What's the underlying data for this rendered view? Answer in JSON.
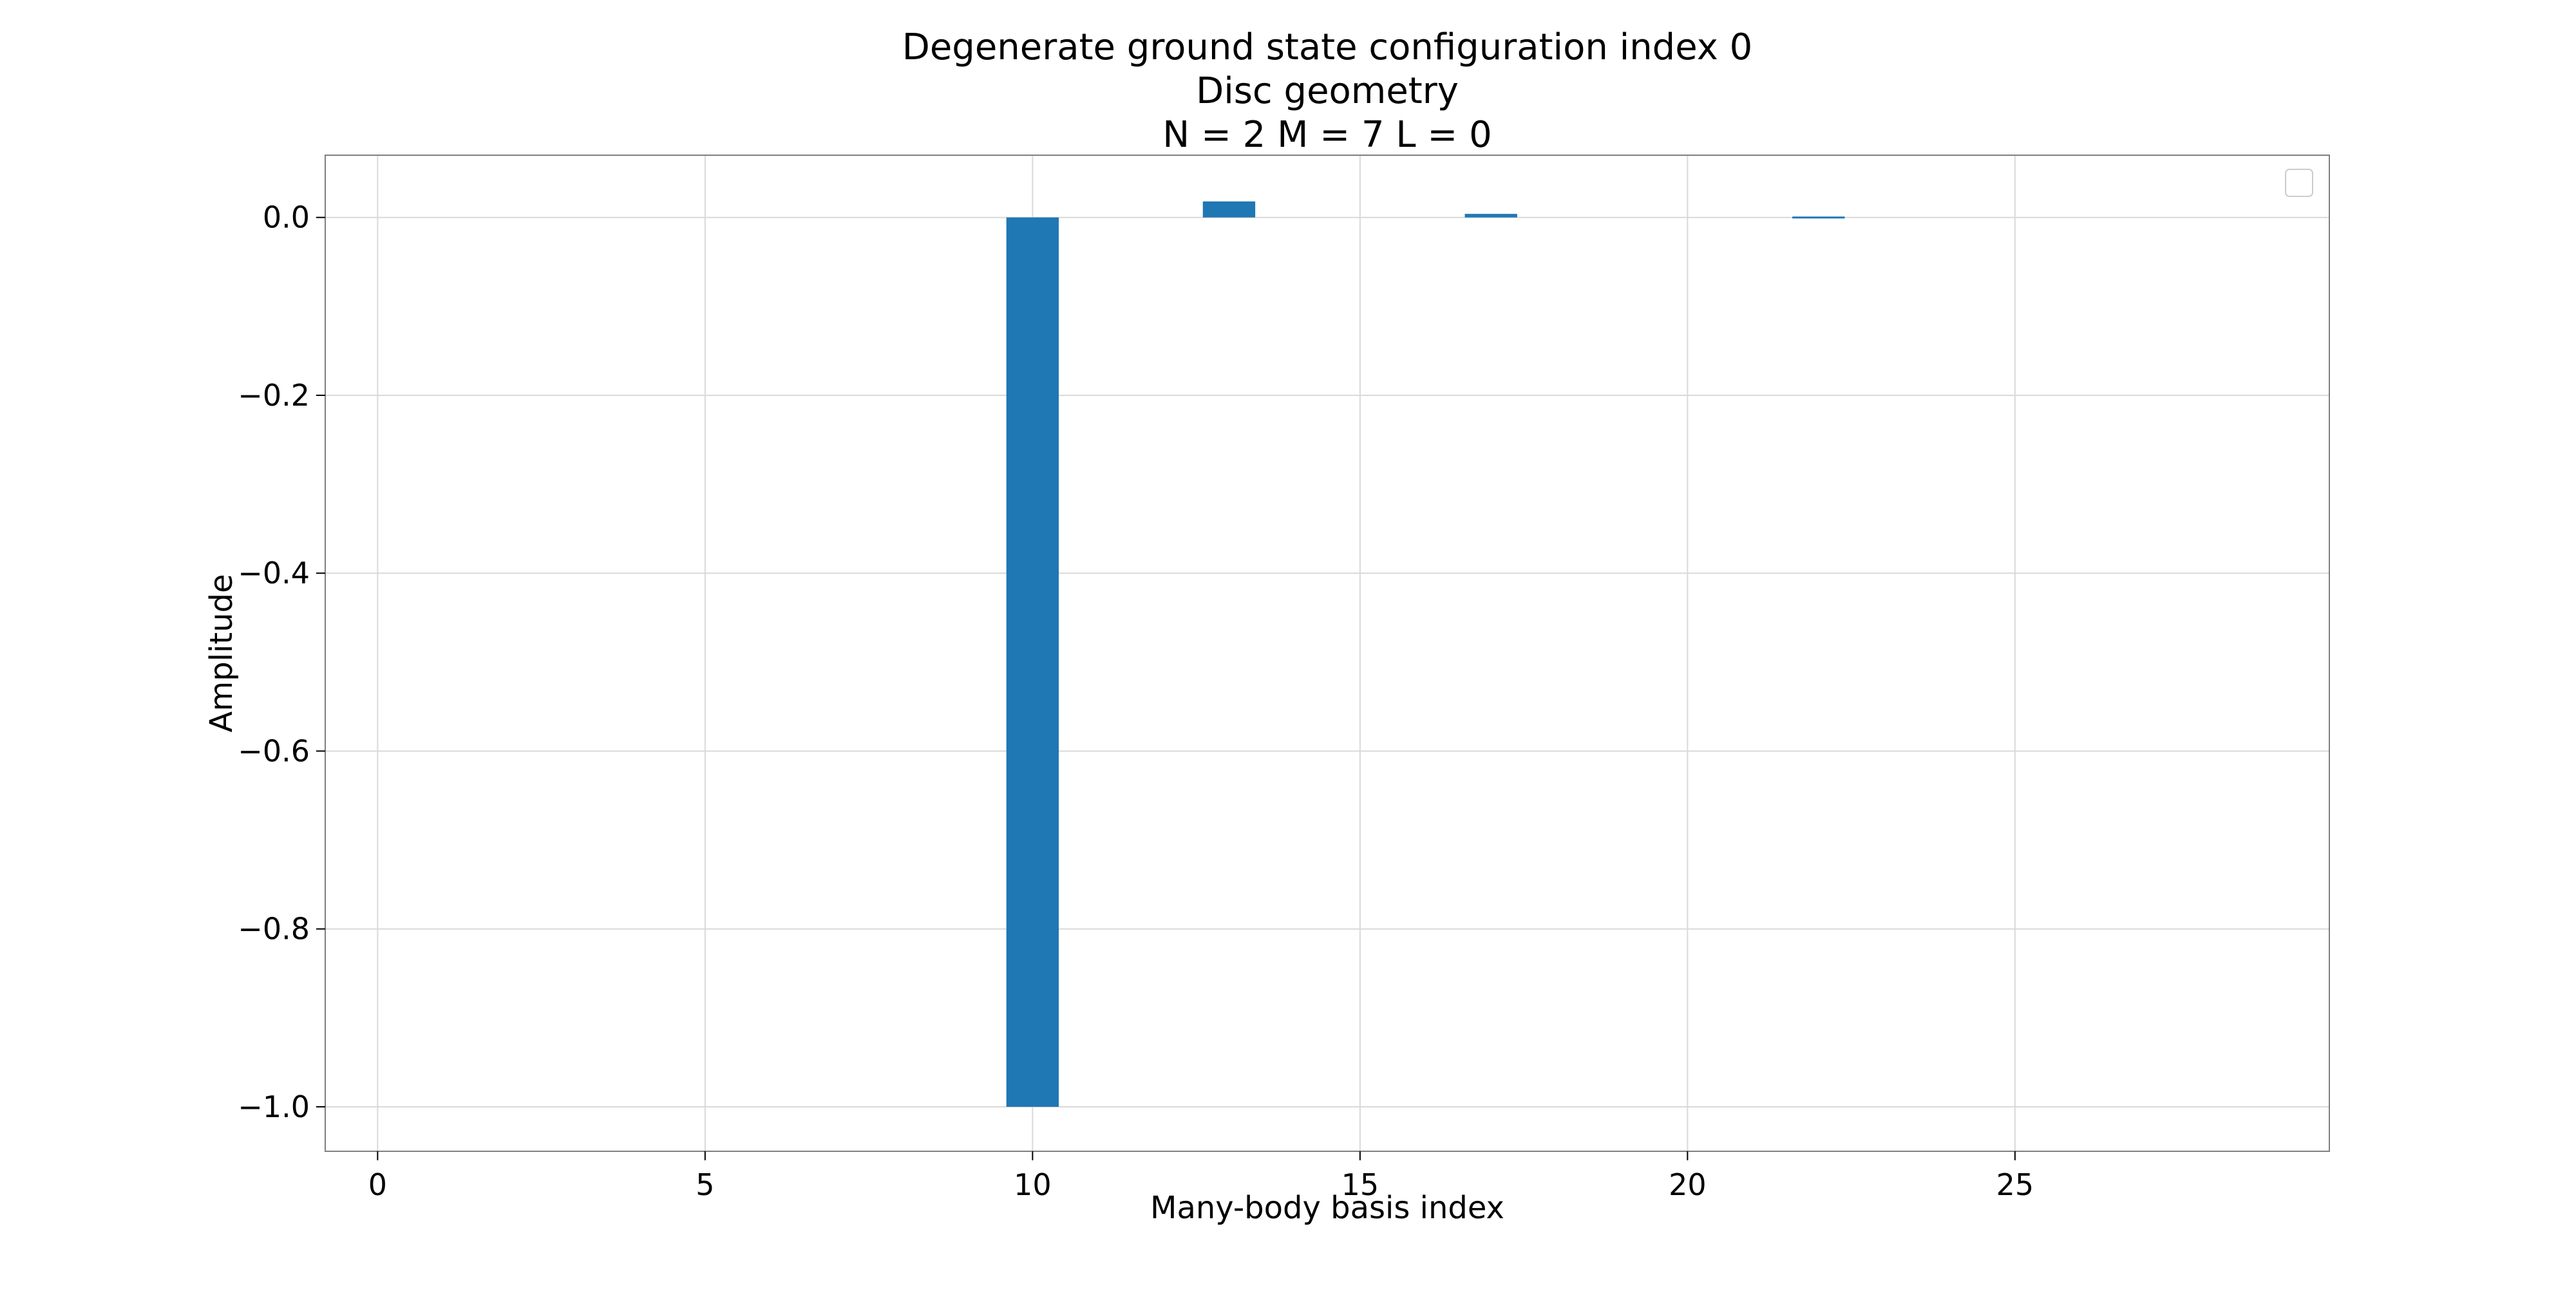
{
  "chart_data": {
    "type": "bar",
    "title_lines": [
      "Degenerate ground state configuration index 0",
      "Disc geometry",
      "N = 2   M = 7   L = 0"
    ],
    "xlabel": "Many-body basis index",
    "ylabel": "Amplitude",
    "xlim": [
      -0.8,
      29.8
    ],
    "ylim": [
      -1.05,
      0.07
    ],
    "x_ticks": [
      0,
      5,
      10,
      15,
      20,
      25
    ],
    "x_tick_labels": [
      "0",
      "5",
      "10",
      "15",
      "20",
      "25"
    ],
    "y_ticks": [
      0.0,
      -0.2,
      -0.4,
      -0.6,
      -0.8,
      -1.0
    ],
    "y_tick_labels": [
      "0.0",
      "−0.2",
      "−0.4",
      "−0.6",
      "−0.8",
      "−1.0"
    ],
    "grid": true,
    "legend": "top-right",
    "bar_color": "#1f77b4",
    "series": [
      {
        "x": [
          10,
          13,
          17,
          22
        ],
        "values": [
          -1.0,
          0.018,
          0.004,
          0.001
        ]
      }
    ]
  }
}
